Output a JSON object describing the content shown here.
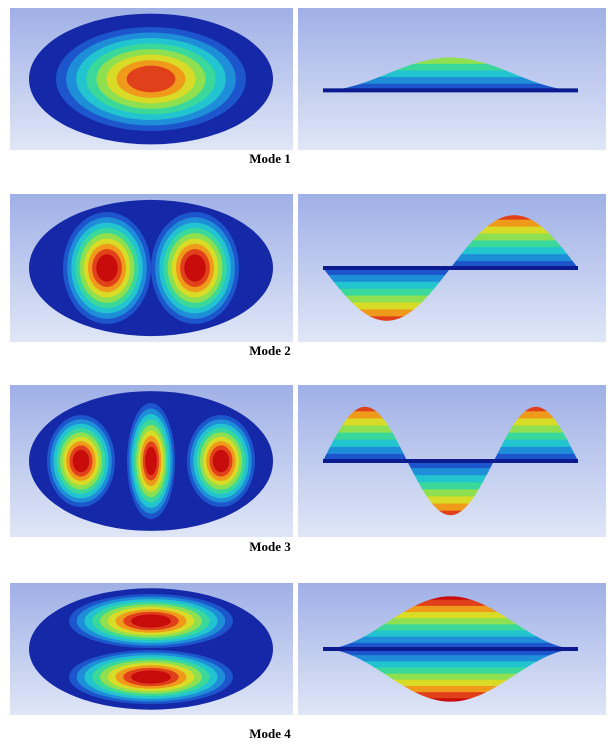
{
  "figure": {
    "panels": [
      {
        "caption": "Mode 1"
      },
      {
        "caption": "Mode 2"
      },
      {
        "caption": "Mode 3"
      },
      {
        "caption": "Mode 4"
      }
    ]
  }
}
